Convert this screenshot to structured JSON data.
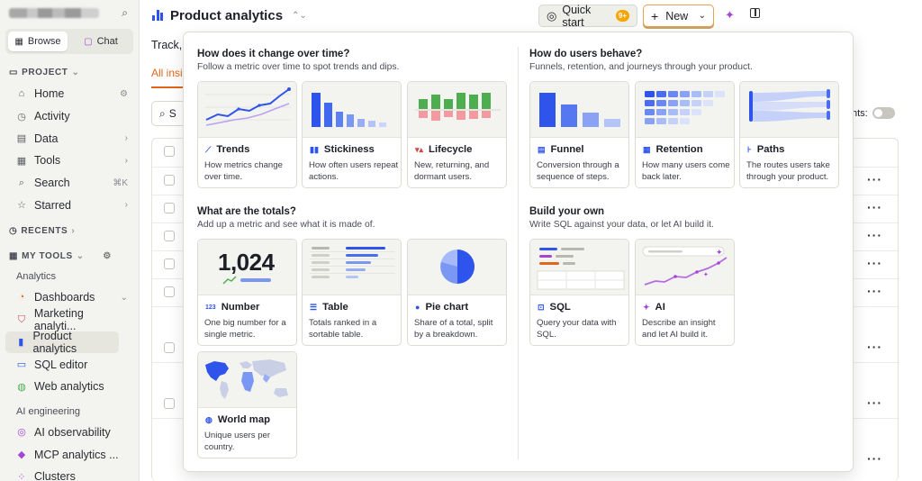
{
  "sidebar": {
    "search_icon": "search-icon",
    "tabs": [
      {
        "label": "Browse",
        "icon": "grid-icon"
      },
      {
        "label": "Chat",
        "icon": "chat-icon"
      }
    ],
    "project_label": "PROJECT",
    "project_items": [
      {
        "label": "Home",
        "icon": "home-icon",
        "trail": "⚙"
      },
      {
        "label": "Activity",
        "icon": "clock-icon",
        "trail": ""
      },
      {
        "label": "Data",
        "icon": "database-icon",
        "trail": "›"
      },
      {
        "label": "Tools",
        "icon": "tools-icon",
        "trail": "›"
      },
      {
        "label": "Search",
        "icon": "search-icon",
        "trail": "⌘K"
      },
      {
        "label": "Starred",
        "icon": "star-icon",
        "trail": "›"
      }
    ],
    "recents_label": "RECENTS",
    "mytools_label": "MY TOOLS",
    "analytics_label": "Analytics",
    "analytics_items": [
      {
        "label": "Dashboards",
        "icon": "dashboard-icon",
        "trail": "⌄"
      },
      {
        "label": "Marketing analyti...",
        "icon": "marketing-icon",
        "trail": ""
      },
      {
        "label": "Product analytics",
        "icon": "bar-chart-icon",
        "trail": ""
      },
      {
        "label": "SQL editor",
        "icon": "sql-icon",
        "trail": ""
      },
      {
        "label": "Web analytics",
        "icon": "globe-icon",
        "trail": ""
      }
    ],
    "ai_label": "AI engineering",
    "ai_items": [
      {
        "label": "AI observability",
        "icon": "ai-observability-icon"
      },
      {
        "label": "MCP analytics ...",
        "icon": "mcp-icon"
      },
      {
        "label": "Clusters",
        "icon": "clusters-icon"
      }
    ]
  },
  "header": {
    "title": "Product analytics",
    "quick_start": "Quick start",
    "quick_start_badge": "9+",
    "new_label": "New"
  },
  "background": {
    "track_text": "Track,",
    "all_insights_tab": "All insi",
    "search_text": "S",
    "toggle_label": "hts:"
  },
  "popover": {
    "sections": {
      "over_time": {
        "title": "How does it change over time?",
        "subtitle": "Follow a metric over time to spot trends and dips."
      },
      "behave": {
        "title": "How do users behave?",
        "subtitle": "Funnels, retention, and journeys through your product."
      },
      "totals": {
        "title": "What are the totals?",
        "subtitle": "Add up a metric and see what it is made of."
      },
      "own": {
        "title": "Build your own",
        "subtitle": "Write SQL against your data, or let AI build it."
      }
    },
    "cards": {
      "trends": {
        "title": "Trends",
        "desc": "How metrics change over time."
      },
      "stickiness": {
        "title": "Stickiness",
        "desc": "How often users repeat actions."
      },
      "lifecycle": {
        "title": "Lifecycle",
        "desc": "New, returning, and dormant users."
      },
      "funnel": {
        "title": "Funnel",
        "desc": "Conversion through a sequence of steps."
      },
      "retention": {
        "title": "Retention",
        "desc": "How many users come back later."
      },
      "paths": {
        "title": "Paths",
        "desc": "The routes users take through your product."
      },
      "number": {
        "title": "Number",
        "desc": "One big number for a single metric.",
        "preview": "1,024"
      },
      "table": {
        "title": "Table",
        "desc": "Totals ranked in a sortable table."
      },
      "pie": {
        "title": "Pie chart",
        "desc": "Share of a total, split by a breakdown."
      },
      "sql": {
        "title": "SQL",
        "desc": "Query your data with SQL."
      },
      "ai": {
        "title": "AI",
        "desc": "Describe an insight and let AI build it."
      },
      "worldmap": {
        "title": "World map",
        "desc": "Unique users per country."
      }
    }
  },
  "colors": {
    "accent_blue": "#2f54eb",
    "brand_orange": "#e0661b",
    "ai_purple": "#a346d5"
  }
}
